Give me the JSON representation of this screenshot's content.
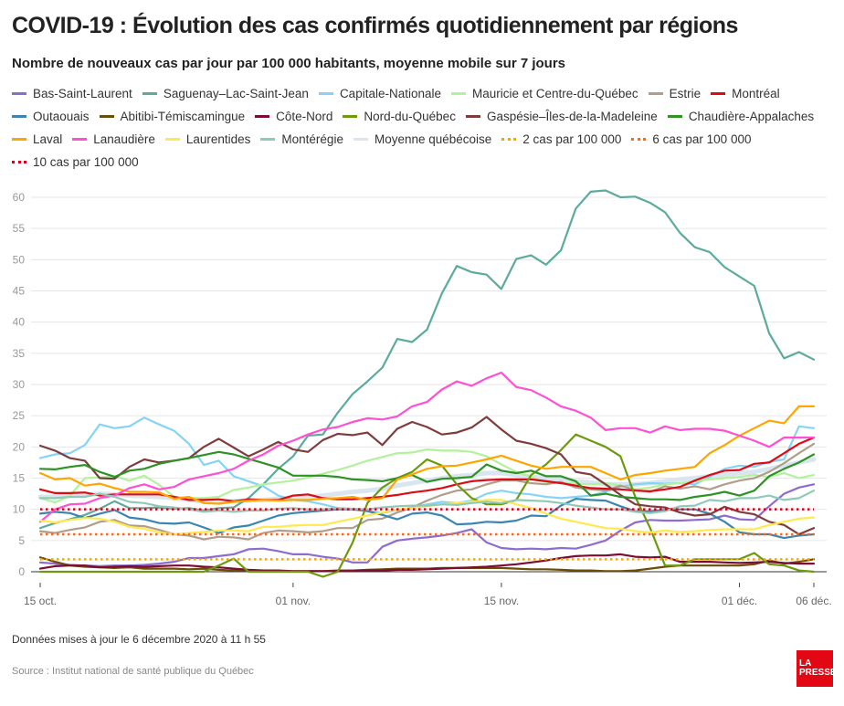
{
  "header": {
    "title": "COVID-19 : Évolution des cas confirmés quotidiennement par régions",
    "subtitle": "Nombre de nouveaux cas par jour par 100 000 habitants, moyenne mobile sur 7 jours"
  },
  "footer": {
    "updated": "Données mises à jour le 6 décembre 2020 à 11 h 55",
    "source": "Source : Institut national de santé publique du Québec",
    "logo_line1": "LA",
    "logo_line2": "PRESSE"
  },
  "chart_data": {
    "type": "line",
    "title": "COVID-19 : Évolution des cas confirmés quotidiennement par régions",
    "subtitle": "Nombre de nouveaux cas par jour par 100 000 habitants, moyenne mobile sur 7 jours",
    "xlabel": "",
    "ylabel": "",
    "x_start": "2020-10-15",
    "x_days": 53,
    "x_ticks": [
      {
        "day": 0,
        "label": "15 oct."
      },
      {
        "day": 17,
        "label": "01 nov."
      },
      {
        "day": 31,
        "label": "15 nov."
      },
      {
        "day": 47,
        "label": "01 déc."
      },
      {
        "day": 52,
        "label": "06 déc."
      }
    ],
    "ylim": [
      0,
      60
    ],
    "y_ticks": [
      0,
      5,
      10,
      15,
      20,
      25,
      30,
      35,
      40,
      45,
      50,
      55,
      60
    ],
    "grid": true,
    "legend_position": "top",
    "thresholds": [
      {
        "name": "2 cas par 100 000",
        "value": 2,
        "color": "#f5a700"
      },
      {
        "name": "6 cas par 100 000",
        "value": 6,
        "color": "#f26b21"
      },
      {
        "name": "10 cas par 100 000",
        "value": 10,
        "color": "#d7001a"
      }
    ],
    "series": [
      {
        "name": "Bas-Saint-Laurent",
        "color": "#8e6ccf",
        "values": [
          1.5,
          1.3,
          1.1,
          1.0,
          0.9,
          1.0,
          1.0,
          1.1,
          1.3,
          1.6,
          2.2,
          2.2,
          2.5,
          2.8,
          3.6,
          3.7,
          3.3,
          2.8,
          2.8,
          2.4,
          2.1,
          1.5,
          1.5,
          4.0,
          5.0,
          5.3,
          5.5,
          5.8,
          6.2,
          6.8,
          4.7,
          3.8,
          3.6,
          3.7,
          3.6,
          3.8,
          3.7,
          4.3,
          5.0,
          6.6,
          7.9,
          8.3,
          8.2,
          8.2,
          8.3,
          8.4,
          9.0,
          8.4,
          8.3,
          10.5,
          12.5,
          13.5,
          14.0
        ]
      },
      {
        "name": "Saguenay–Lac-Saint-Jean",
        "color": "#5cab9c",
        "values": [
          7.0,
          7.8,
          8.4,
          9.1,
          10.1,
          11.3,
          10.2,
          10.2,
          10.3,
          10.1,
          10.2,
          9.8,
          10.2,
          10.3,
          11.8,
          14.0,
          16.5,
          18.5,
          21.8,
          22.0,
          25.5,
          28.5,
          30.5,
          32.7,
          37.3,
          36.8,
          38.8,
          44.6,
          49.0,
          48.0,
          47.6,
          45.3,
          50.1,
          50.7,
          49.2,
          51.5,
          58.2,
          60.9,
          61.1,
          60.0,
          60.1,
          59.1,
          57.6,
          54.3,
          52.0,
          51.2,
          48.8,
          47.3,
          45.8,
          38.2,
          34.2,
          35.2,
          34.0
        ]
      },
      {
        "name": "Capitale-Nationale",
        "color": "#85d4f5",
        "values": [
          18.2,
          18.8,
          19.0,
          20.3,
          23.6,
          23.0,
          23.3,
          24.7,
          23.6,
          22.6,
          20.5,
          17.1,
          17.8,
          15.3,
          14.5,
          13.7,
          12.2,
          11.5,
          11.3,
          10.8,
          10.2,
          10.0,
          9.8,
          9.4,
          9.9,
          10.3,
          10.8,
          11.2,
          11.0,
          11.4,
          12.5,
          13.0,
          12.6,
          12.4,
          12.0,
          11.8,
          12.0,
          12.2,
          12.8,
          13.6,
          14.0,
          14.2,
          14.1,
          14.2,
          14.0,
          15.2,
          16.5,
          17.0,
          16.8,
          17.6,
          18.0,
          23.3,
          23.0
        ]
      },
      {
        "name": "Mauricie et Centre-du-Québec",
        "color": "#b2f29a",
        "values": [
          11.8,
          11.1,
          12.2,
          15.0,
          15.1,
          15.3,
          14.6,
          15.4,
          13.9,
          12.0,
          11.8,
          11.8,
          12.0,
          13.1,
          13.5,
          14.0,
          14.3,
          14.6,
          15.1,
          15.7,
          16.3,
          17.0,
          17.8,
          18.4,
          19.0,
          19.1,
          19.6,
          19.4,
          19.4,
          19.2,
          18.5,
          17.2,
          16.0,
          15.2,
          14.3,
          14.2,
          14.1,
          14.0,
          14.2,
          13.8,
          13.2,
          13.5,
          14.0,
          14.2,
          14.5,
          14.8,
          15.0,
          15.2,
          15.5,
          15.2,
          15.8,
          15.0,
          15.5
        ]
      },
      {
        "name": "Estrie",
        "color": "#b09e8c",
        "values": [
          6.5,
          6.2,
          6.7,
          7.1,
          8.0,
          8.3,
          7.4,
          7.3,
          6.7,
          6.0,
          5.8,
          5.2,
          5.6,
          5.5,
          5.2,
          6.2,
          6.6,
          6.5,
          6.3,
          6.5,
          7.0,
          7.0,
          8.3,
          8.5,
          9.5,
          10.3,
          11.4,
          12.3,
          13.0,
          13.2,
          14.0,
          14.6,
          14.6,
          14.2,
          14.0,
          14.4,
          13.5,
          13.2,
          13.0,
          13.8,
          13.1,
          12.8,
          13.7,
          13.3,
          13.7,
          13.2,
          14.0,
          14.6,
          15.0,
          16.0,
          17.4,
          19.0,
          20.5
        ]
      },
      {
        "name": "Montréal",
        "color": "#dd0b13",
        "values": [
          13.2,
          12.6,
          12.6,
          12.7,
          12.2,
          12.4,
          12.4,
          12.4,
          12.4,
          12.0,
          11.5,
          11.5,
          11.6,
          11.3,
          11.6,
          11.5,
          11.5,
          12.2,
          12.4,
          11.8,
          11.6,
          11.6,
          11.8,
          12.0,
          12.3,
          12.7,
          13.0,
          13.4,
          14.0,
          14.5,
          14.7,
          14.8,
          14.8,
          14.8,
          14.5,
          14.2,
          13.8,
          13.4,
          13.3,
          13.2,
          13.0,
          12.9,
          13.2,
          13.6,
          14.6,
          15.5,
          16.2,
          16.3,
          17.3,
          17.5,
          19.0,
          20.5,
          21.5
        ]
      },
      {
        "name": "Outaouais",
        "color": "#3a86b0",
        "values": [
          9.3,
          9.6,
          9.4,
          8.6,
          9.3,
          9.9,
          8.7,
          8.4,
          7.8,
          7.7,
          7.9,
          7.1,
          6.2,
          7.1,
          7.4,
          8.2,
          9.0,
          9.4,
          9.6,
          9.8,
          10.0,
          10.0,
          9.7,
          9.1,
          8.4,
          9.3,
          9.5,
          9.0,
          7.6,
          7.7,
          8.0,
          7.9,
          8.2,
          9.0,
          8.9,
          10.6,
          11.7,
          11.5,
          11.4,
          10.5,
          9.7,
          9.7,
          9.9,
          10.0,
          10.0,
          9.3,
          8.0,
          6.3,
          6.0,
          6.0,
          5.4,
          5.8,
          6.0
        ]
      },
      {
        "name": "Abitibi-Témiscamingue",
        "color": "#6b4d08",
        "values": [
          2.3,
          1.6,
          1.0,
          0.8,
          0.7,
          0.6,
          0.7,
          0.5,
          0.5,
          0.5,
          0.4,
          0.5,
          0.3,
          0.2,
          0.2,
          0.2,
          0.1,
          0.1,
          0.1,
          0.1,
          0.2,
          0.2,
          0.3,
          0.4,
          0.5,
          0.5,
          0.5,
          0.6,
          0.6,
          0.6,
          0.6,
          0.6,
          0.5,
          0.4,
          0.4,
          0.3,
          0.2,
          0.2,
          0.1,
          0.1,
          0.2,
          0.5,
          0.8,
          1.0,
          1.0,
          1.0,
          1.0,
          1.0,
          1.2,
          1.8,
          1.3,
          1.6,
          2.0
        ]
      },
      {
        "name": "Côte-Nord",
        "color": "#7c0c32",
        "values": [
          0.5,
          0.9,
          1.0,
          1.0,
          0.7,
          0.8,
          0.9,
          0.8,
          0.9,
          1.0,
          1.0,
          0.8,
          0.7,
          0.5,
          0.3,
          0.2,
          0.2,
          0.1,
          0.1,
          0.1,
          0.1,
          0.1,
          0.2,
          0.2,
          0.3,
          0.3,
          0.4,
          0.5,
          0.6,
          0.7,
          0.8,
          1.0,
          1.2,
          1.5,
          1.8,
          2.2,
          2.5,
          2.6,
          2.6,
          2.8,
          2.4,
          2.3,
          2.4,
          1.6,
          1.6,
          1.6,
          1.5,
          1.4,
          1.5,
          1.6,
          1.4,
          1.3,
          1.3
        ]
      },
      {
        "name": "Nord-du-Québec",
        "color": "#6b9a0f",
        "values": [
          0,
          0,
          0,
          0,
          0,
          0,
          0,
          0,
          0,
          0,
          0,
          0,
          1.0,
          2.1,
          0,
          0,
          0,
          0,
          0,
          -0.8,
          0,
          4.7,
          11.0,
          13.5,
          15.0,
          16.0,
          18.0,
          17.0,
          14.0,
          11.8,
          10.8,
          10.8,
          11.5,
          15.5,
          17.2,
          19.5,
          22.0,
          21.0,
          20.0,
          18.5,
          12.0,
          7.0,
          1.0,
          1.0,
          2.0,
          2.0,
          2.0,
          2.0,
          3.0,
          1.2,
          1.0,
          0.2,
          0
        ]
      },
      {
        "name": "Gaspésie–Îles-de-la-Madeleine",
        "color": "#7f3c3c",
        "values": [
          20.2,
          19.4,
          18.2,
          17.8,
          15.0,
          14.9,
          16.8,
          18.0,
          17.5,
          17.8,
          18.2,
          20.0,
          21.3,
          19.9,
          18.5,
          19.6,
          20.8,
          19.6,
          19.2,
          21.1,
          22.1,
          21.9,
          22.3,
          20.3,
          22.9,
          24.0,
          23.2,
          22.0,
          22.3,
          23.1,
          24.8,
          22.8,
          21.0,
          20.5,
          19.8,
          18.8,
          16.0,
          15.6,
          14.0,
          12.3,
          10.8,
          10.5,
          10.3,
          9.5,
          9.0,
          9.2,
          10.4,
          9.6,
          9.2,
          8.0,
          7.5,
          6.0,
          7.0
        ]
      },
      {
        "name": "Chaudière-Appalaches",
        "color": "#2e9226",
        "values": [
          16.5,
          16.4,
          16.8,
          17.1,
          16.0,
          15.2,
          16.2,
          16.5,
          17.3,
          17.8,
          18.2,
          18.7,
          19.2,
          18.8,
          18.1,
          17.4,
          16.7,
          15.4,
          15.4,
          15.4,
          15.2,
          14.8,
          14.7,
          14.5,
          15.0,
          15.5,
          14.4,
          14.9,
          15.0,
          15.2,
          17.2,
          16.2,
          15.8,
          16.2,
          15.3,
          15.3,
          14.5,
          12.2,
          12.5,
          12.0,
          11.8,
          11.6,
          11.6,
          11.5,
          12.0,
          12.3,
          12.8,
          12.2,
          13.0,
          15.3,
          16.5,
          17.5,
          18.8
        ]
      },
      {
        "name": "Laval",
        "color": "#ffa500",
        "values": [
          15.8,
          14.8,
          15.0,
          13.8,
          14.1,
          13.4,
          12.8,
          12.8,
          12.7,
          11.7,
          12.0,
          11.0,
          10.9,
          11.2,
          11.4,
          11.5,
          11.4,
          11.5,
          11.5,
          11.7,
          11.8,
          12.0,
          11.5,
          11.8,
          14.8,
          15.6,
          16.5,
          16.9,
          17.0,
          17.5,
          18.0,
          18.6,
          17.8,
          17.0,
          16.5,
          16.8,
          16.8,
          16.8,
          15.8,
          14.8,
          15.5,
          15.8,
          16.2,
          16.5,
          16.8,
          19.0,
          20.3,
          21.8,
          23.0,
          24.2,
          23.8,
          26.5,
          26.5
        ]
      },
      {
        "name": "Lanaudière",
        "color": "#ff50d3",
        "values": [
          8.0,
          10.0,
          10.8,
          10.9,
          11.8,
          12.2,
          13.4,
          14.0,
          13.2,
          13.6,
          14.8,
          15.3,
          15.8,
          16.5,
          17.8,
          18.8,
          20.2,
          21.0,
          22.0,
          22.8,
          23.2,
          24.0,
          24.6,
          24.4,
          24.9,
          26.5,
          27.2,
          29.2,
          30.5,
          29.8,
          31.0,
          31.9,
          29.6,
          29.1,
          27.9,
          26.5,
          25.8,
          24.7,
          22.7,
          23.0,
          23.0,
          22.3,
          23.3,
          22.7,
          22.9,
          22.9,
          22.6,
          21.8,
          21.0,
          20.0,
          21.5,
          21.5,
          21.5
        ]
      },
      {
        "name": "Laurentides",
        "color": "#ffe94f",
        "values": [
          8.2,
          7.9,
          8.3,
          8.6,
          8.5,
          8.0,
          7.2,
          6.9,
          6.3,
          6.0,
          6.2,
          6.4,
          6.6,
          6.6,
          6.5,
          7.2,
          7.2,
          7.4,
          7.5,
          7.5,
          8.0,
          8.5,
          9.0,
          9.5,
          10.0,
          10.2,
          10.5,
          10.8,
          11.0,
          11.2,
          11.5,
          11.5,
          10.8,
          10.2,
          9.3,
          8.5,
          8.0,
          7.5,
          7.0,
          6.9,
          6.5,
          6.3,
          6.6,
          6.4,
          6.5,
          6.7,
          6.8,
          6.8,
          6.8,
          7.5,
          8.0,
          8.5,
          8.7
        ]
      },
      {
        "name": "Montérégie",
        "color": "#8fcab8",
        "values": [
          11.8,
          11.8,
          12.0,
          12.0,
          12.5,
          12.0,
          11.2,
          11.0,
          10.5,
          10.3,
          10.0,
          9.6,
          9.8,
          9.6,
          9.8,
          9.8,
          10.1,
          10.2,
          10.0,
          10.0,
          10.2,
          10.1,
          10.0,
          10.3,
          10.5,
          10.6,
          10.6,
          10.8,
          10.7,
          11.0,
          11.2,
          11.0,
          11.5,
          11.4,
          11.3,
          11.0,
          10.6,
          10.3,
          10.0,
          10.0,
          9.6,
          9.4,
          9.7,
          10.5,
          10.6,
          11.5,
          11.3,
          11.8,
          11.8,
          12.2,
          11.5,
          11.8,
          13.0
        ]
      },
      {
        "name": "Moyenne québécoise",
        "color": "#d9e6ef",
        "values": [
          12.0,
          12.0,
          12.2,
          12.3,
          12.5,
          12.4,
          12.2,
          12.1,
          12.0,
          11.8,
          11.5,
          11.3,
          11.3,
          11.3,
          11.4,
          11.5,
          11.7,
          11.8,
          12.0,
          12.2,
          12.5,
          12.8,
          13.0,
          13.3,
          13.8,
          14.2,
          14.6,
          15.0,
          15.3,
          15.5,
          15.8,
          15.8,
          15.5,
          15.2,
          15.0,
          14.8,
          14.5,
          14.3,
          14.0,
          14.0,
          14.0,
          14.2,
          14.5,
          14.8,
          15.0,
          15.3,
          15.5,
          15.8,
          16.0,
          16.5,
          17.0,
          17.5,
          18.0
        ]
      }
    ]
  }
}
